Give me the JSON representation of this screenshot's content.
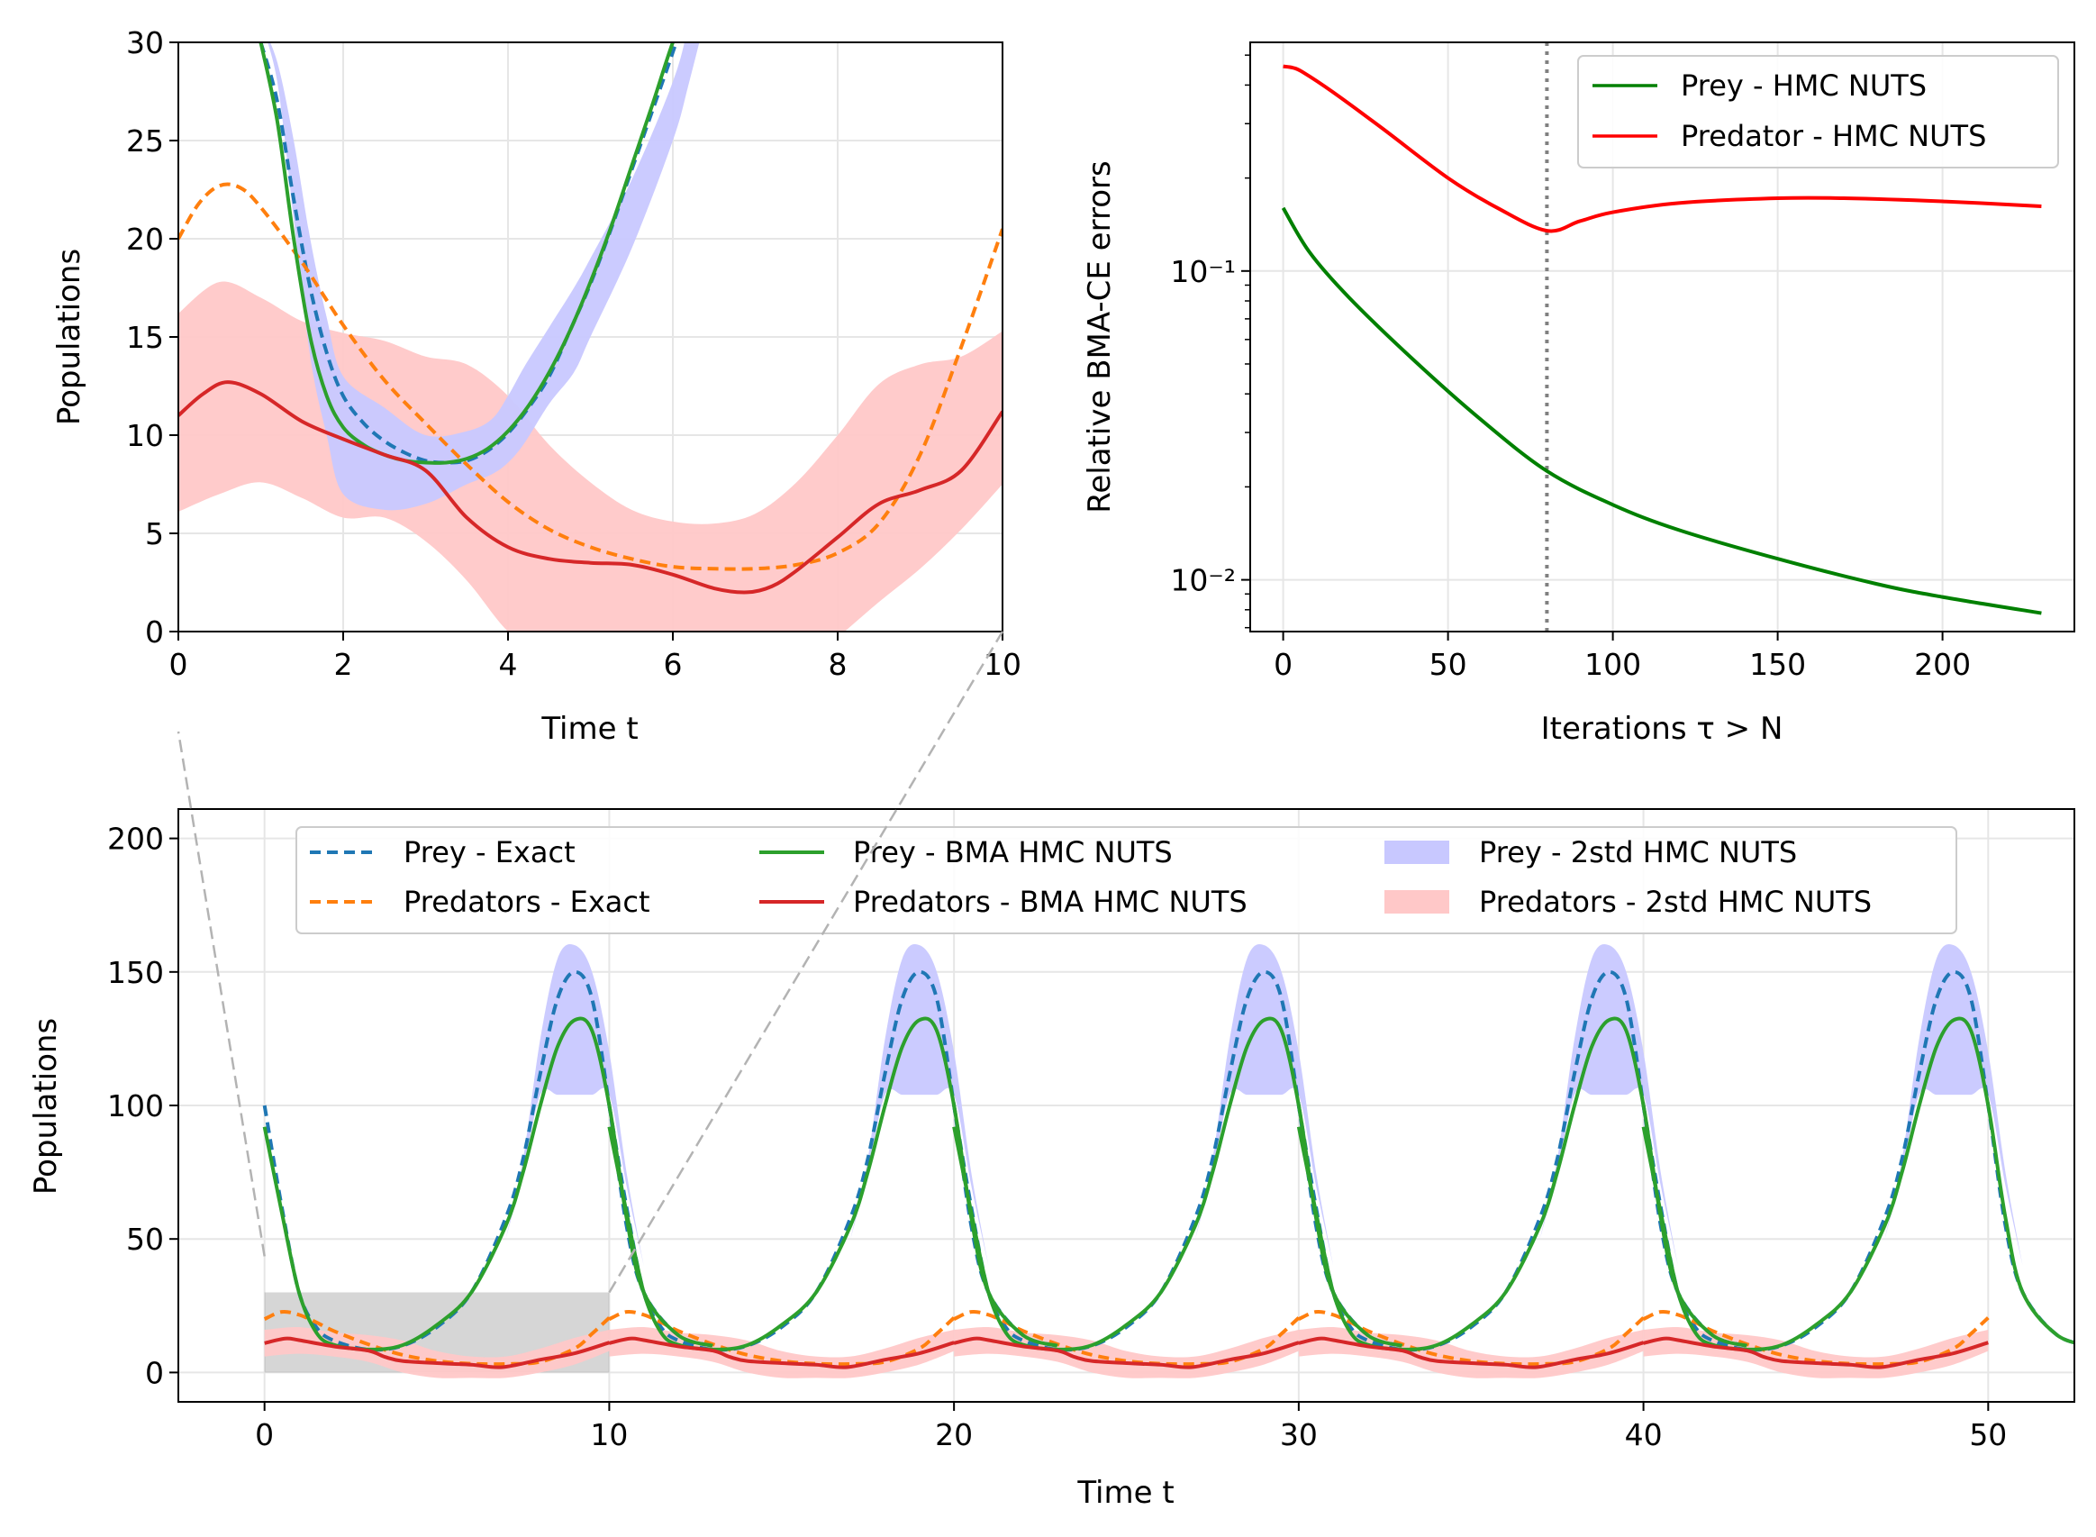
{
  "colors": {
    "prey_exact": "#1f77b4",
    "pred_exact": "#ff7f0e",
    "prey_bma": "#2ca02c",
    "pred_bma": "#d62728",
    "prey_band": "#c8c8ff",
    "pred_band": "#ffc8c8",
    "grid": "#e6e6e6",
    "green": "#008000",
    "red": "#ff0000"
  },
  "chart_data": [
    {
      "id": "zoom",
      "type": "line",
      "xlabel": "Time t",
      "ylabel": "Populations",
      "xlim": [
        0,
        10
      ],
      "ylim": [
        0,
        30
      ],
      "xticks": [
        0,
        2,
        4,
        6,
        8,
        10
      ],
      "yticks": [
        0,
        5,
        10,
        15,
        20,
        25,
        30
      ],
      "series": [
        {
          "name": "Predators - 2std HMC NUTS",
          "kind": "band",
          "color": "#ffc8c8",
          "x": [
            0,
            0.5,
            1,
            1.5,
            2,
            2.5,
            3,
            3.5,
            4,
            4.5,
            5,
            5.5,
            6,
            6.5,
            7,
            7.5,
            8,
            8.5,
            9,
            9.5,
            10
          ],
          "upper": [
            16.2,
            17.8,
            17,
            15.8,
            15.2,
            14.8,
            14,
            13.6,
            12,
            9.5,
            7.6,
            6.2,
            5.6,
            5.5,
            6,
            7.6,
            10,
            12.6,
            13.6,
            14,
            15.3
          ],
          "lower": [
            6.1,
            7,
            7.6,
            6.8,
            5.8,
            5.8,
            4.6,
            2.6,
            0,
            -1.5,
            -2.8,
            -2.8,
            -2.5,
            -2.5,
            -2.6,
            -2,
            -0.3,
            1.5,
            3.2,
            5.2,
            7.5
          ]
        },
        {
          "name": "Prey - 2std HMC NUTS",
          "kind": "band",
          "color": "#c8c8ff",
          "x": [
            1,
            1.2,
            1.4,
            1.6,
            1.8,
            2,
            2.5,
            3,
            3.5,
            3.8,
            4,
            4.2,
            4.5,
            4.8,
            5,
            5.5,
            6,
            6.2,
            6.5
          ],
          "upper": [
            31,
            29,
            25,
            20,
            16,
            13,
            11.4,
            10,
            10.2,
            10.8,
            12,
            13.5,
            15.5,
            17.5,
            19,
            23,
            28,
            31,
            36
          ],
          "lower": [
            31,
            28,
            21,
            14,
            10,
            7,
            6.2,
            6.5,
            7.5,
            8,
            8.6,
            9.6,
            11.6,
            13.2,
            15,
            19.5,
            25,
            28,
            33
          ]
        },
        {
          "name": "Prey - Exact",
          "kind": "line",
          "dash": "12,7",
          "color": "#1f77b4",
          "x": [
            1,
            1.2,
            1.4,
            1.6,
            1.8,
            2,
            2.25,
            2.5,
            2.75,
            3,
            3.25,
            3.5,
            3.75,
            4,
            4.25,
            4.5,
            4.75,
            5,
            5.25,
            5.5,
            5.75,
            6,
            6.2
          ],
          "y": [
            30,
            27,
            22,
            17.5,
            14.2,
            12,
            10.6,
            9.7,
            9.1,
            8.7,
            8.6,
            8.7,
            9.2,
            10.1,
            11.4,
            13,
            15.3,
            17.7,
            20.5,
            23.5,
            26.5,
            29.5,
            32
          ]
        },
        {
          "name": "Predators - Exact",
          "kind": "line",
          "dash": "12,7",
          "color": "#ff7f0e",
          "x": [
            0,
            0.25,
            0.5,
            0.75,
            1,
            1.5,
            2,
            2.5,
            3,
            3.5,
            4,
            4.5,
            5,
            5.5,
            6,
            6.5,
            7,
            7.5,
            8,
            8.5,
            9,
            9.5,
            10
          ],
          "y": [
            20,
            21.8,
            22.7,
            22.6,
            21.6,
            18.8,
            15.6,
            12.8,
            10.6,
            8.5,
            6.6,
            5.2,
            4.3,
            3.7,
            3.3,
            3.2,
            3.2,
            3.4,
            4,
            5.5,
            9,
            14.5,
            20.5
          ]
        },
        {
          "name": "Prey - BMA HMC NUTS",
          "kind": "line",
          "color": "#2ca02c",
          "x": [
            1,
            1.2,
            1.4,
            1.6,
            1.8,
            2,
            2.25,
            2.5,
            2.75,
            3,
            3.25,
            3.5,
            3.75,
            4,
            4.25,
            4.5,
            4.75,
            5,
            5.25,
            5.5,
            5.75,
            6,
            6.2
          ],
          "y": [
            30,
            26,
            20,
            15,
            12,
            10.4,
            9.5,
            9,
            8.7,
            8.6,
            8.6,
            8.8,
            9.3,
            10.2,
            11.5,
            13.2,
            15.3,
            17.8,
            20.6,
            23.7,
            26.8,
            30,
            32
          ]
        },
        {
          "name": "Predators - BMA HMC NUTS",
          "kind": "line",
          "color": "#d62728",
          "x": [
            0,
            0.3,
            0.6,
            1,
            1.5,
            2,
            2.5,
            3,
            3.5,
            4,
            4.5,
            5,
            5.5,
            6,
            6.5,
            6.9,
            7.2,
            7.5,
            8,
            8.5,
            9,
            9.5,
            10
          ],
          "y": [
            11,
            12.1,
            12.7,
            12.1,
            10.7,
            9.8,
            9,
            8.2,
            5.8,
            4.3,
            3.7,
            3.5,
            3.4,
            2.9,
            2.2,
            2,
            2.3,
            3.1,
            4.8,
            6.5,
            7.2,
            8.2,
            11.2
          ]
        }
      ]
    },
    {
      "id": "errors",
      "type": "line",
      "xlabel": "Iterations τ > N",
      "ylabel": "Relative BMA-CE errors",
      "xlim": [
        -10,
        240
      ],
      "yscale": "log",
      "ylim": [
        0.0068,
        0.55
      ],
      "xticks": [
        0,
        50,
        100,
        150,
        200
      ],
      "ytick_labels": [
        "10⁻²",
        "10⁻¹"
      ],
      "vline": {
        "x": 80,
        "style": "dotted",
        "color": "#808080"
      },
      "legend": {
        "position": "upper right",
        "entries": [
          "Prey - HMC NUTS",
          "Predator - HMC NUTS"
        ]
      },
      "series": [
        {
          "name": "Prey - HMC NUTS",
          "color": "#008000",
          "x": [
            0,
            8,
            20,
            40,
            60,
            80,
            100,
            120,
            150,
            180,
            200,
            230
          ],
          "y": [
            0.16,
            0.115,
            0.082,
            0.051,
            0.033,
            0.0225,
            0.0175,
            0.0145,
            0.0117,
            0.0097,
            0.0088,
            0.0078
          ]
        },
        {
          "name": "Predator - HMC NUTS",
          "color": "#ff0000",
          "x": [
            0,
            3,
            6,
            15,
            30,
            50,
            65,
            80,
            90,
            100,
            120,
            150,
            170,
            200,
            230
          ],
          "y": [
            0.46,
            0.455,
            0.44,
            0.38,
            0.29,
            0.2,
            0.16,
            0.135,
            0.145,
            0.155,
            0.166,
            0.172,
            0.172,
            0.168,
            0.162
          ]
        }
      ]
    },
    {
      "id": "full",
      "type": "line",
      "xlabel": "Time t",
      "ylabel": "Populations",
      "xlim": [
        -2.5,
        52.5
      ],
      "ylim": [
        -11,
        211
      ],
      "xticks": [
        0,
        10,
        20,
        30,
        40,
        50
      ],
      "yticks": [
        0,
        50,
        100,
        150,
        200
      ],
      "zoom_box": {
        "x": [
          0,
          10
        ],
        "y": [
          0,
          30
        ]
      },
      "legend": {
        "position": "upper center",
        "ncol": 3,
        "entries": [
          "Prey - Exact",
          "Predators - Exact",
          "Prey - BMA HMC NUTS",
          "Predators - BMA HMC NUTS",
          "Prey - 2std HMC NUTS",
          "Predators - 2std HMC NUTS"
        ]
      },
      "cycle_offsets": [
        0,
        10,
        20,
        30,
        40
      ],
      "series": [
        {
          "name": "Predators - 2std HMC NUTS",
          "kind": "band",
          "color": "#ffc8c8",
          "x": [
            0,
            1,
            2,
            3,
            4,
            5,
            6,
            7,
            8,
            9,
            10
          ],
          "upper": [
            16,
            17,
            15,
            14,
            12,
            8,
            6,
            6,
            9,
            13,
            16
          ],
          "lower": [
            6,
            7,
            6,
            4,
            0,
            -2,
            -2,
            -2,
            0,
            3,
            8
          ]
        },
        {
          "name": "Prey - 2std HMC NUTS",
          "kind": "band",
          "color": "#c8c8ff",
          "x": [
            7,
            7.5,
            8,
            8.5,
            9,
            9.5,
            10,
            10.5,
            11
          ],
          "upper": [
            50,
            80,
            125,
            155,
            160,
            150,
            120,
            75,
            40
          ],
          "lower": [
            50,
            75,
            104,
            104,
            104,
            104,
            104,
            70,
            40
          ]
        },
        {
          "name": "Prey - Exact",
          "kind": "line",
          "dash": "12,7",
          "color": "#1f77b4",
          "x": [
            0,
            0.5,
            1,
            1.5,
            2,
            3,
            4,
            5,
            6,
            7,
            7.5,
            8,
            8.5,
            9,
            9.5,
            10,
            10.5,
            11,
            12,
            13
          ],
          "y": [
            100,
            62,
            30,
            17,
            12,
            8.6,
            10,
            17,
            30,
            58,
            80,
            112,
            140,
            150,
            140,
            100,
            55,
            30,
            14,
            10
          ]
        },
        {
          "name": "Predators - Exact",
          "kind": "line",
          "dash": "12,7",
          "color": "#ff7f0e",
          "x": [
            0,
            0.5,
            1,
            1.5,
            2,
            3,
            4,
            5,
            6,
            7,
            8,
            9,
            9.5,
            10
          ],
          "y": [
            20,
            22.7,
            21.6,
            18.8,
            15.6,
            10.6,
            6.6,
            4.3,
            3.3,
            3.2,
            4,
            9,
            14.5,
            20.5
          ]
        },
        {
          "name": "Prey - BMA HMC NUTS",
          "kind": "line",
          "color": "#2ca02c",
          "x": [
            0,
            0.5,
            1,
            1.5,
            2,
            3,
            4,
            5,
            6,
            7,
            7.5,
            8,
            8.5,
            9,
            9.5,
            10,
            10.5,
            11,
            12,
            13
          ],
          "y": [
            92,
            60,
            30,
            15,
            10.4,
            8.6,
            10.2,
            17.8,
            30,
            55,
            75,
            100,
            122,
            132,
            128,
            100,
            58,
            30,
            14,
            10
          ]
        },
        {
          "name": "Predators - BMA HMC NUTS",
          "kind": "line",
          "color": "#d62728",
          "x": [
            0,
            0.6,
            1,
            2,
            3,
            3.5,
            4,
            5,
            6,
            6.9,
            8,
            9,
            10
          ],
          "y": [
            11,
            12.7,
            12.1,
            9.8,
            8.2,
            5.8,
            4.3,
            3.5,
            2.9,
            2,
            4.8,
            7.2,
            11.2
          ]
        }
      ]
    }
  ]
}
